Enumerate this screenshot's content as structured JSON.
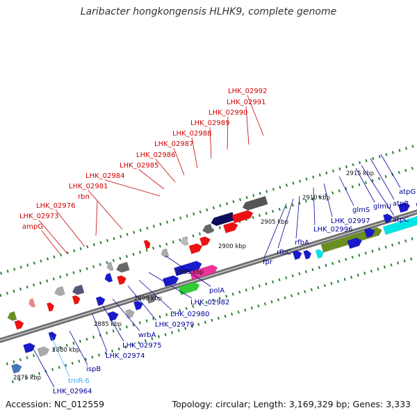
{
  "title": "Laribacter hongkongensis HLHK9, complete genome",
  "footer": {
    "accession": "Accession: NC_012559",
    "topology": "Topology: circular; Length: 3,169,329 bp; Genes: 3,333"
  },
  "colors": {
    "backbone": "#7f7f7f",
    "tick": "#2e7d32",
    "red_label": "#cc0000",
    "blue_label": "#000099",
    "trna_label": "#33aaff"
  },
  "kbp_labels": [
    "2875 kbp",
    "2880 kbp",
    "2885 kbp",
    "2890 kbp",
    "2895 kbp",
    "2900 kbp",
    "2905 kbp",
    "2910 kbp",
    "2915 kbp"
  ],
  "upper_labels": [
    "LHK_02992",
    "LHK_02991",
    "LHK_02990",
    "LHK_02989",
    "LHK_02988",
    "LHK_02987",
    "LHK_02986",
    "LHK_02985",
    "LHK_02984",
    "LHK_02981",
    "rbn",
    "LHK_02976",
    "LHK_02973",
    "ampG"
  ],
  "lower_labels": [
    "atpG",
    "atpB",
    "atpC",
    "glmU",
    "glmS",
    "LHK_02997",
    "LHK_02996",
    "rfbA",
    "rfbC",
    "fpr",
    "polA",
    "LHK_02982",
    "LHK_02980",
    "LHK_02979",
    "wrbA",
    "LHK_02975",
    "LHK_02974",
    "ispB",
    "trnR-6",
    "LHK_02964"
  ]
}
